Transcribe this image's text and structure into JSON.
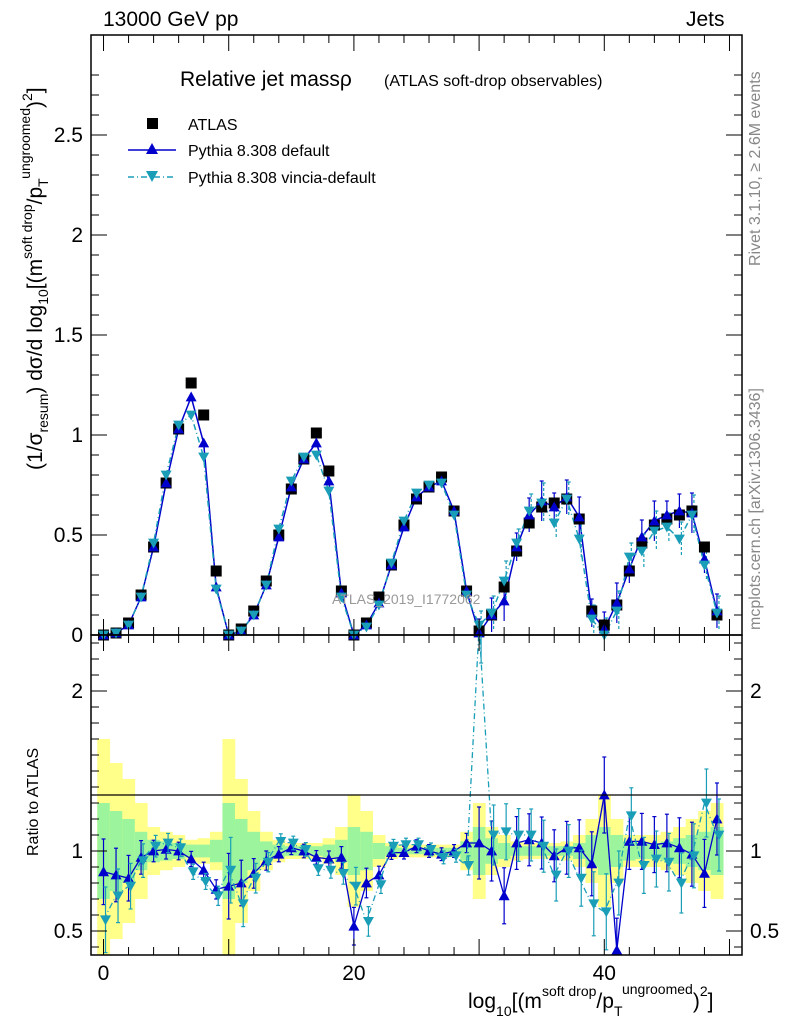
{
  "header": {
    "left": "13000 GeV pp",
    "right": "Jets"
  },
  "side": {
    "rivet": "Rivet 3.1.10, ≥ 2.6M events",
    "mcplots": "mcplots.cern.ch [arXiv:1306.3436]"
  },
  "chart_data": [
    {
      "type": "scatter",
      "title": "Relative jet massρ",
      "subtitle": "(ATLAS soft-drop observables)",
      "watermark": "ATLAS_2019_I1772062",
      "xlabel": "log10[(m^{soft drop}/p_T^{ungroomed})^2]",
      "ylabel": "(1/σ_resum) dσ/d log10[(m^{soft drop}/p_T^{ungroomed})^2]",
      "xlim": [
        -1,
        51
      ],
      "ylim": [
        0,
        3
      ],
      "x_ticks": [
        "0",
        "20",
        "40"
      ],
      "y_ticks": [
        "0",
        "0.5",
        "1",
        "1.5",
        "2",
        "2.5"
      ],
      "legend_position": "top-left",
      "x": [
        0,
        1,
        2,
        3,
        4,
        5,
        6,
        7,
        8,
        9,
        10,
        11,
        12,
        13,
        14,
        15,
        16,
        17,
        18,
        19,
        20,
        21,
        22,
        23,
        24,
        25,
        26,
        27,
        28,
        29,
        30,
        31,
        32,
        33,
        34,
        35,
        36,
        37,
        38,
        39,
        40,
        41,
        42,
        43,
        44,
        45,
        46,
        47,
        48,
        49
      ],
      "series": [
        {
          "name": "ATLAS",
          "marker": "square",
          "color": "#000000",
          "values": [
            0.0,
            0.01,
            0.06,
            0.2,
            0.44,
            0.76,
            1.03,
            1.26,
            1.1,
            0.32,
            0.0,
            0.03,
            0.12,
            0.27,
            0.5,
            0.73,
            0.88,
            1.01,
            0.82,
            0.22,
            0.0,
            0.06,
            0.19,
            0.35,
            0.55,
            0.68,
            0.74,
            0.79,
            0.62,
            0.22,
            0.02,
            0.1,
            0.24,
            0.42,
            0.56,
            0.64,
            0.66,
            0.68,
            0.58,
            0.12,
            0.05,
            0.15,
            0.32,
            0.46,
            0.55,
            0.58,
            0.6,
            0.62,
            0.44,
            0.1
          ]
        },
        {
          "name": "Pythia 8.308 default",
          "marker": "triangle-up",
          "color": "#0000cc",
          "values": [
            0.0,
            0.01,
            0.05,
            0.19,
            0.44,
            0.76,
            1.03,
            1.19,
            0.96,
            0.24,
            0.0,
            0.02,
            0.1,
            0.25,
            0.49,
            0.74,
            0.88,
            0.96,
            0.77,
            0.21,
            0.0,
            0.05,
            0.16,
            0.35,
            0.54,
            0.69,
            0.74,
            0.77,
            0.62,
            0.22,
            0.01,
            0.1,
            0.17,
            0.44,
            0.6,
            0.67,
            0.64,
            0.69,
            0.59,
            0.11,
            0.03,
            0.16,
            0.33,
            0.49,
            0.57,
            0.6,
            0.62,
            0.61,
            0.38,
            0.12
          ]
        },
        {
          "name": "Pythia 8.308 vincia-default",
          "marker": "triangle-down",
          "color": "#1a9eb8",
          "values": [
            0.0,
            0.01,
            0.05,
            0.19,
            0.46,
            0.8,
            1.05,
            1.1,
            0.89,
            0.23,
            0.0,
            0.02,
            0.1,
            0.25,
            0.53,
            0.77,
            0.89,
            0.9,
            0.72,
            0.19,
            0.0,
            0.04,
            0.15,
            0.36,
            0.57,
            0.71,
            0.75,
            0.76,
            0.6,
            0.2,
            0.05,
            0.11,
            0.27,
            0.46,
            0.62,
            0.66,
            0.56,
            0.68,
            0.48,
            0.08,
            0.0,
            0.12,
            0.39,
            0.42,
            0.52,
            0.54,
            0.48,
            0.6,
            0.35,
            0.11
          ]
        }
      ]
    },
    {
      "type": "scatter",
      "ylabel": "Ratio to ATLAS",
      "xlabel": "log10[(m^{soft drop}/p_T^{ungroomed})^2]",
      "xlim": [
        -1,
        51
      ],
      "ylim": [
        0.35,
        2.35
      ],
      "y_ticks": [
        "0.5",
        "1",
        "2"
      ],
      "x": [
        0,
        1,
        2,
        3,
        4,
        5,
        6,
        7,
        8,
        9,
        10,
        11,
        12,
        13,
        14,
        15,
        16,
        17,
        18,
        19,
        20,
        21,
        22,
        23,
        24,
        25,
        26,
        27,
        28,
        29,
        30,
        31,
        32,
        33,
        34,
        35,
        36,
        37,
        38,
        39,
        40,
        41,
        42,
        43,
        44,
        45,
        46,
        47,
        48,
        49
      ],
      "uncertainty_bands": {
        "yellow_halfwidth": [
          0.7,
          0.55,
          0.45,
          0.3,
          0.15,
          0.12,
          0.1,
          0.07,
          0.08,
          0.12,
          0.7,
          0.45,
          0.25,
          0.12,
          0.07,
          0.05,
          0.05,
          0.05,
          0.08,
          0.15,
          0.35,
          0.25,
          0.1,
          0.05,
          0.04,
          0.04,
          0.04,
          0.04,
          0.04,
          0.12,
          0.3,
          0.15,
          0.1,
          0.06,
          0.05,
          0.05,
          0.05,
          0.06,
          0.1,
          0.2,
          0.35,
          0.2,
          0.1,
          0.1,
          0.1,
          0.12,
          0.15,
          0.2,
          0.25,
          0.3
        ],
        "green_halfwidth": [
          0.3,
          0.25,
          0.2,
          0.12,
          0.07,
          0.06,
          0.05,
          0.04,
          0.04,
          0.07,
          0.3,
          0.2,
          0.12,
          0.06,
          0.04,
          0.03,
          0.03,
          0.03,
          0.04,
          0.07,
          0.15,
          0.12,
          0.05,
          0.03,
          0.02,
          0.02,
          0.02,
          0.02,
          0.02,
          0.06,
          0.15,
          0.08,
          0.05,
          0.03,
          0.03,
          0.03,
          0.03,
          0.03,
          0.05,
          0.1,
          0.15,
          0.1,
          0.06,
          0.05,
          0.05,
          0.06,
          0.08,
          0.1,
          0.12,
          0.15
        ]
      },
      "series": [
        {
          "name": "Pythia 8.308 default",
          "color": "#0000cc",
          "values": [
            0.87,
            0.85,
            0.83,
            0.96,
            1.0,
            1.01,
            1.0,
            0.95,
            0.88,
            0.76,
            0.78,
            0.8,
            0.86,
            0.94,
            0.98,
            1.02,
            1.0,
            0.96,
            0.95,
            0.96,
            0.53,
            0.8,
            0.85,
            0.99,
            0.99,
            1.03,
            1.0,
            0.98,
            1.0,
            1.05,
            1.05,
            1.0,
            0.72,
            1.05,
            1.07,
            1.05,
            0.97,
            1.02,
            1.02,
            0.92,
            1.35,
            0.38,
            1.06,
            1.06,
            1.04,
            1.05,
            1.02,
            0.98,
            0.86,
            1.2
          ]
        },
        {
          "name": "Pythia 8.308 vincia-default",
          "color": "#1a9eb8",
          "values": [
            0.57,
            0.72,
            0.78,
            0.94,
            1.03,
            1.05,
            1.02,
            0.87,
            0.81,
            0.72,
            0.88,
            0.67,
            0.83,
            0.93,
            1.06,
            1.05,
            1.01,
            0.89,
            0.88,
            0.86,
            0.78,
            0.56,
            0.79,
            1.03,
            1.04,
            1.04,
            1.01,
            0.96,
            0.97,
            0.91,
            2.4,
            1.1,
            1.12,
            1.1,
            1.1,
            1.03,
            0.85,
            1.0,
            0.83,
            0.67,
            0.62,
            0.8,
            1.22,
            0.91,
            0.95,
            0.93,
            0.8,
            0.97,
            1.3,
            1.1
          ]
        }
      ]
    }
  ]
}
